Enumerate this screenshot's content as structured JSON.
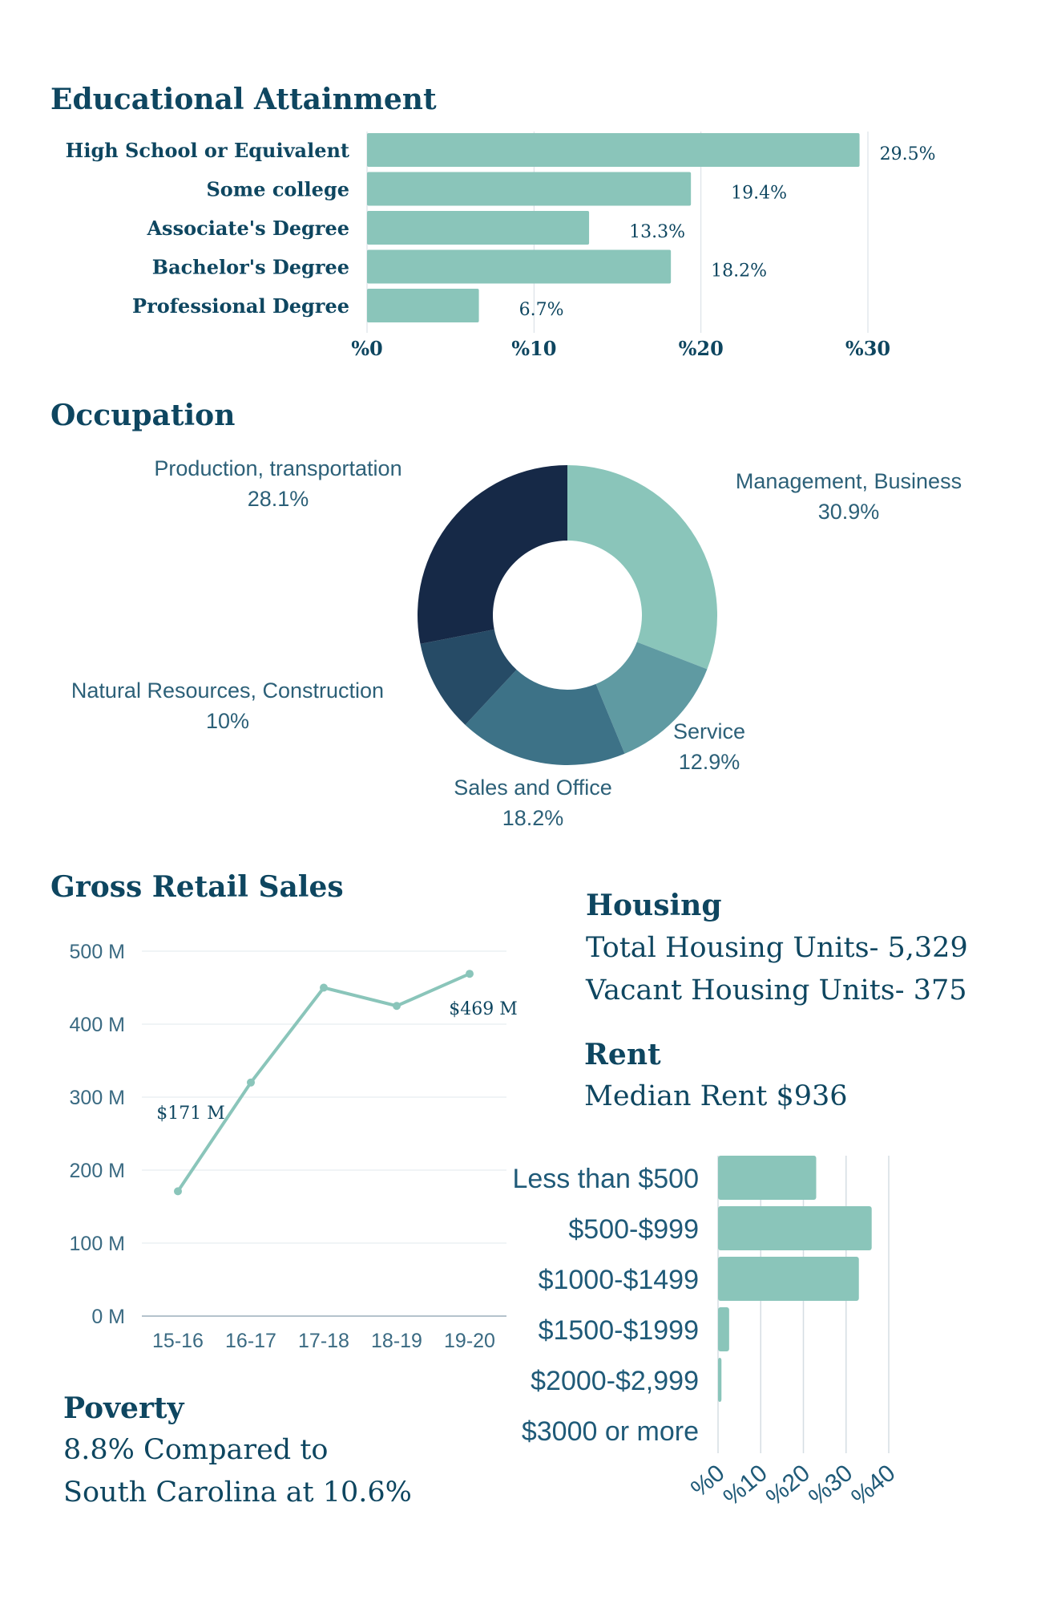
{
  "colors": {
    "bar": "#8ac5ba",
    "text": "#0e4660",
    "grid": "#d5dde3"
  },
  "chart_data": [
    {
      "type": "bar",
      "orientation": "horizontal",
      "title": "Educational Attainment",
      "categories": [
        "High School or Equivalent",
        "Some college",
        "Associate's Degree",
        "Bachelor's Degree",
        "Professional Degree"
      ],
      "values": [
        29.5,
        19.4,
        13.3,
        18.2,
        6.7
      ],
      "data_labels": [
        "29.5%",
        "19.4%",
        "13.3%",
        "18.2%",
        "6.7%"
      ],
      "xlim": [
        0,
        30
      ],
      "ticks": [
        "%0",
        "%10",
        "%20",
        "%30"
      ],
      "grid": true
    },
    {
      "type": "pie",
      "donut": true,
      "title": "Occupation",
      "slices": [
        {
          "name": "Management, Business",
          "value": 30.9,
          "label": "30.9%",
          "color": "#8ac5ba"
        },
        {
          "name": "Service",
          "value": 12.9,
          "label": "12.9%",
          "color": "#5f9aa2"
        },
        {
          "name": "Sales and Office",
          "value": 18.2,
          "label": "18.2%",
          "color": "#3d7287"
        },
        {
          "name": "Natural Resources, Construction",
          "value": 10,
          "label": "10%",
          "color": "#264b66"
        },
        {
          "name": "Production, transportation",
          "value": 28.1,
          "label": "28.1%",
          "color": "#162947"
        }
      ]
    },
    {
      "type": "line",
      "title": "Gross Retail Sales",
      "categories": [
        "15-16",
        "16-17",
        "17-18",
        "18-19",
        "19-20"
      ],
      "values": [
        171,
        320,
        450,
        425,
        469
      ],
      "unit": "M",
      "ylim": [
        0,
        500
      ],
      "yticks": [
        "0 M",
        "100 M",
        "200 M",
        "300 M",
        "400 M",
        "500 M"
      ],
      "data_labels": [
        {
          "index": 0,
          "text": "$171 M"
        },
        {
          "index": 4,
          "text": "$469 M"
        }
      ],
      "grid": true,
      "color": "#8ac5ba"
    },
    {
      "type": "bar",
      "orientation": "horizontal",
      "categories": [
        "Less than $500",
        "$500-$999",
        "$1000-$1499",
        "$1500-$1999",
        "$2000-$2,999",
        "$3000 or more"
      ],
      "values": [
        23,
        36,
        33,
        2.6,
        0.8,
        0
      ],
      "xlim": [
        0,
        40
      ],
      "ticks": [
        "%0",
        "%10",
        "%20",
        "%30",
        "%40"
      ],
      "grid": true
    }
  ],
  "housing": {
    "title": "Housing",
    "total": "Total Housing Units- 5,329",
    "vacant": "Vacant Housing Units- 375"
  },
  "rent": {
    "title": "Rent",
    "median": "Median Rent $936"
  },
  "poverty": {
    "title": "Poverty",
    "line1": "8.8% Compared to",
    "line2": "South Carolina at 10.6%"
  }
}
